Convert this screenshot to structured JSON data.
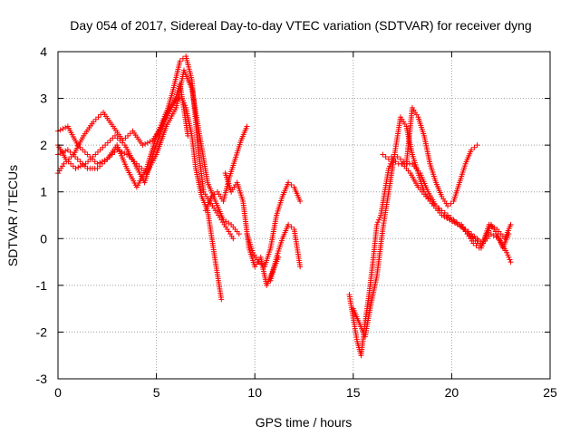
{
  "chart_data": {
    "type": "scatter",
    "title": "Day 054 of 2017, Sidereal Day-to-day VTEC variation (SDTVAR) for receiver dyng",
    "xlabel": "GPS time / hours",
    "ylabel": "SDTVAR / TECUs",
    "xlim": [
      0,
      25
    ],
    "ylim": [
      -3,
      4
    ],
    "xticks": [
      "0",
      "5",
      "10",
      "15",
      "20",
      "25"
    ],
    "yticks": [
      "-3",
      "-2",
      "-1",
      "0",
      "1",
      "2",
      "3",
      "4"
    ],
    "grid": true,
    "legend": "none",
    "marker": "plus",
    "color": "#ff0000",
    "series": [
      {
        "x": [
          0.0,
          0.5,
          1.0,
          1.5,
          2.0,
          2.5,
          3.0,
          3.5,
          4.0,
          4.5,
          5.0,
          5.5,
          6.0,
          6.3,
          6.5,
          6.8,
          7.0,
          7.3,
          7.6,
          8.0,
          8.3
        ],
        "y": [
          2.3,
          2.4,
          2.0,
          1.8,
          1.6,
          1.7,
          2.0,
          1.5,
          1.1,
          1.5,
          2.2,
          2.7,
          3.0,
          3.0,
          2.8,
          2.2,
          1.5,
          0.9,
          0.6,
          -0.5,
          -1.3
        ]
      },
      {
        "x": [
          0.0,
          0.3,
          0.8,
          1.3,
          1.8,
          2.3,
          2.8,
          3.3,
          3.8,
          4.3,
          4.8,
          5.3,
          5.8,
          6.2,
          6.5,
          6.8,
          7.1,
          7.4,
          7.7,
          8.0,
          8.3,
          8.6,
          8.9
        ],
        "y": [
          1.4,
          1.6,
          1.8,
          2.2,
          2.5,
          2.7,
          2.4,
          2.1,
          2.3,
          2.0,
          2.1,
          2.4,
          3.1,
          3.8,
          3.9,
          3.4,
          2.0,
          1.0,
          0.8,
          0.6,
          0.4,
          0.2,
          0.0
        ]
      },
      {
        "x": [
          0.0,
          0.5,
          1.0,
          1.5,
          2.0,
          2.5,
          3.0,
          3.5,
          4.0,
          4.5,
          5.0,
          5.5,
          6.0,
          6.4,
          6.8,
          7.2,
          7.6,
          8.0,
          8.4,
          8.8,
          9.2
        ],
        "y": [
          1.8,
          1.9,
          1.7,
          1.5,
          1.5,
          1.7,
          1.9,
          1.8,
          1.6,
          1.4,
          1.8,
          2.4,
          2.8,
          3.6,
          3.2,
          2.2,
          1.2,
          0.8,
          0.4,
          0.3,
          0.1
        ]
      },
      {
        "x": [
          0.0,
          0.4,
          0.9,
          1.4,
          1.9,
          2.4,
          2.9,
          3.4,
          3.9,
          4.4,
          4.9,
          5.4,
          5.9,
          6.2,
          6.6
        ],
        "y": [
          2.0,
          1.7,
          1.5,
          1.6,
          1.8,
          2.0,
          2.2,
          2.0,
          1.6,
          1.2,
          1.9,
          2.5,
          2.9,
          3.3,
          2.2
        ]
      },
      {
        "x": [
          7.5,
          7.8,
          8.1,
          8.4,
          8.7,
          9.0,
          9.3,
          9.6
        ],
        "y": [
          0.6,
          0.9,
          1.0,
          0.8,
          1.3,
          1.7,
          2.1,
          2.4
        ]
      },
      {
        "x": [
          8.5,
          8.8,
          9.1,
          9.4,
          9.7,
          10.0,
          10.3,
          10.6,
          10.9,
          11.2
        ],
        "y": [
          1.4,
          1.0,
          1.2,
          0.8,
          -0.2,
          -0.6,
          -0.4,
          -1.0,
          -0.7,
          -0.4
        ]
      },
      {
        "x": [
          9.6,
          9.9,
          10.2,
          10.5,
          10.8,
          11.1,
          11.4,
          11.7,
          12.0,
          12.3
        ],
        "y": [
          0.1,
          -0.3,
          -0.5,
          -0.6,
          -0.2,
          0.5,
          0.9,
          1.2,
          1.1,
          0.8
        ]
      },
      {
        "x": [
          10.8,
          11.1,
          11.4,
          11.7,
          12.0,
          12.3
        ],
        "y": [
          -0.9,
          -0.4,
          0.0,
          0.3,
          0.2,
          -0.6
        ]
      },
      {
        "x": [
          14.8,
          15.0,
          15.2,
          15.4,
          15.6,
          15.8,
          16.0,
          16.2,
          16.4,
          16.6,
          16.8,
          17.0,
          17.3,
          17.6,
          18.0,
          18.4,
          18.8,
          19.2,
          19.6,
          20.0,
          20.4,
          20.8,
          21.2,
          21.6,
          22.0,
          22.4,
          22.8,
          23.0
        ],
        "y": [
          -1.2,
          -1.7,
          -2.2,
          -2.5,
          -1.8,
          -1.2,
          -0.5,
          0.3,
          0.5,
          1.0,
          1.5,
          1.7,
          1.6,
          1.6,
          1.6,
          1.4,
          1.0,
          0.7,
          0.5,
          0.4,
          0.3,
          0.1,
          0.0,
          -0.1,
          0.1,
          0.0,
          -0.3,
          -0.5
        ]
      },
      {
        "x": [
          15.0,
          15.3,
          15.6,
          15.9,
          16.2,
          16.5,
          16.8,
          17.1,
          17.4,
          17.7,
          18.0,
          18.3,
          18.6,
          18.9,
          19.2,
          19.5,
          19.8,
          20.1,
          20.4,
          20.7,
          21.0,
          21.3
        ],
        "y": [
          -1.5,
          -1.8,
          -2.1,
          -1.4,
          -0.8,
          0.2,
          1.0,
          1.8,
          2.6,
          2.4,
          1.8,
          1.4,
          1.0,
          0.8,
          0.7,
          0.6,
          0.5,
          0.4,
          0.3,
          0.2,
          0.1,
          0.0
        ]
      },
      {
        "x": [
          16.5,
          16.8,
          17.1,
          17.4,
          17.7,
          18.0,
          18.3,
          18.6,
          18.9,
          19.2,
          19.5,
          19.8,
          20.1,
          20.4,
          20.7,
          21.0,
          21.3
        ],
        "y": [
          1.8,
          1.7,
          1.8,
          1.7,
          1.6,
          2.8,
          2.6,
          2.2,
          1.6,
          1.2,
          0.9,
          0.7,
          0.8,
          1.2,
          1.6,
          1.9,
          2.0
        ]
      },
      {
        "x": [
          17.5,
          17.9,
          18.3,
          18.7,
          19.1,
          19.5,
          19.9,
          20.3,
          20.7,
          21.1,
          21.5,
          21.9,
          22.3,
          22.7,
          23.0
        ],
        "y": [
          1.6,
          1.4,
          1.1,
          0.9,
          0.7,
          0.5,
          0.4,
          0.3,
          0.2,
          0.0,
          -0.2,
          0.3,
          0.2,
          0.0,
          0.3
        ]
      },
      {
        "x": [
          20.5,
          20.8,
          21.1,
          21.4,
          21.7,
          22.0,
          22.3,
          22.6,
          22.9
        ],
        "y": [
          0.3,
          0.1,
          -0.1,
          -0.2,
          0.0,
          0.3,
          0.1,
          -0.2,
          0.1
        ]
      }
    ]
  }
}
